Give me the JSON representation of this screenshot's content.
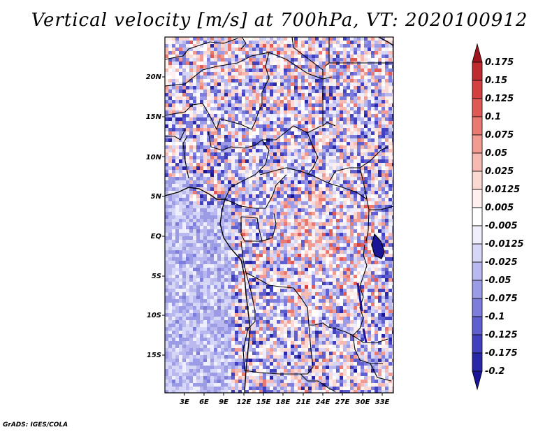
{
  "title": "Vertical velocity [m/s] at 700hPa, VT: 2020100912",
  "footer": "GrADS: IGES/COLA",
  "map": {
    "variable": "Vertical velocity",
    "units": "m/s",
    "level": "700hPa",
    "valid_time": "2020100912",
    "lat_ticks": [
      "20N",
      "15N",
      "10N",
      "5N",
      "EQ",
      "5S",
      "10S",
      "15S"
    ],
    "lon_ticks": [
      "3E",
      "6E",
      "9E",
      "12E",
      "15E",
      "18E",
      "21E",
      "24E",
      "27E",
      "30E",
      "33E"
    ]
  },
  "colorbar": {
    "labels": [
      "0.175",
      "0.15",
      "0.125",
      "0.1",
      "0.075",
      "0.05",
      "0.025",
      "0.0125",
      "0.005",
      "-0.005",
      "-0.0125",
      "-0.025",
      "-0.05",
      "-0.075",
      "-0.1",
      "-0.125",
      "-0.175",
      "-0.2"
    ],
    "colors": [
      "#a0141e",
      "#be2a2e",
      "#d3403f",
      "#e05a55",
      "#e97a72",
      "#f19b92",
      "#f7bab2",
      "#fcd8d2",
      "#fff0ee",
      "#ffffff",
      "#eeeefc",
      "#d6d6f6",
      "#b9b9ef",
      "#9b9be6",
      "#7d7ddc",
      "#5f5fd0",
      "#4141c0",
      "#2828a8",
      "#1a1496"
    ]
  }
}
